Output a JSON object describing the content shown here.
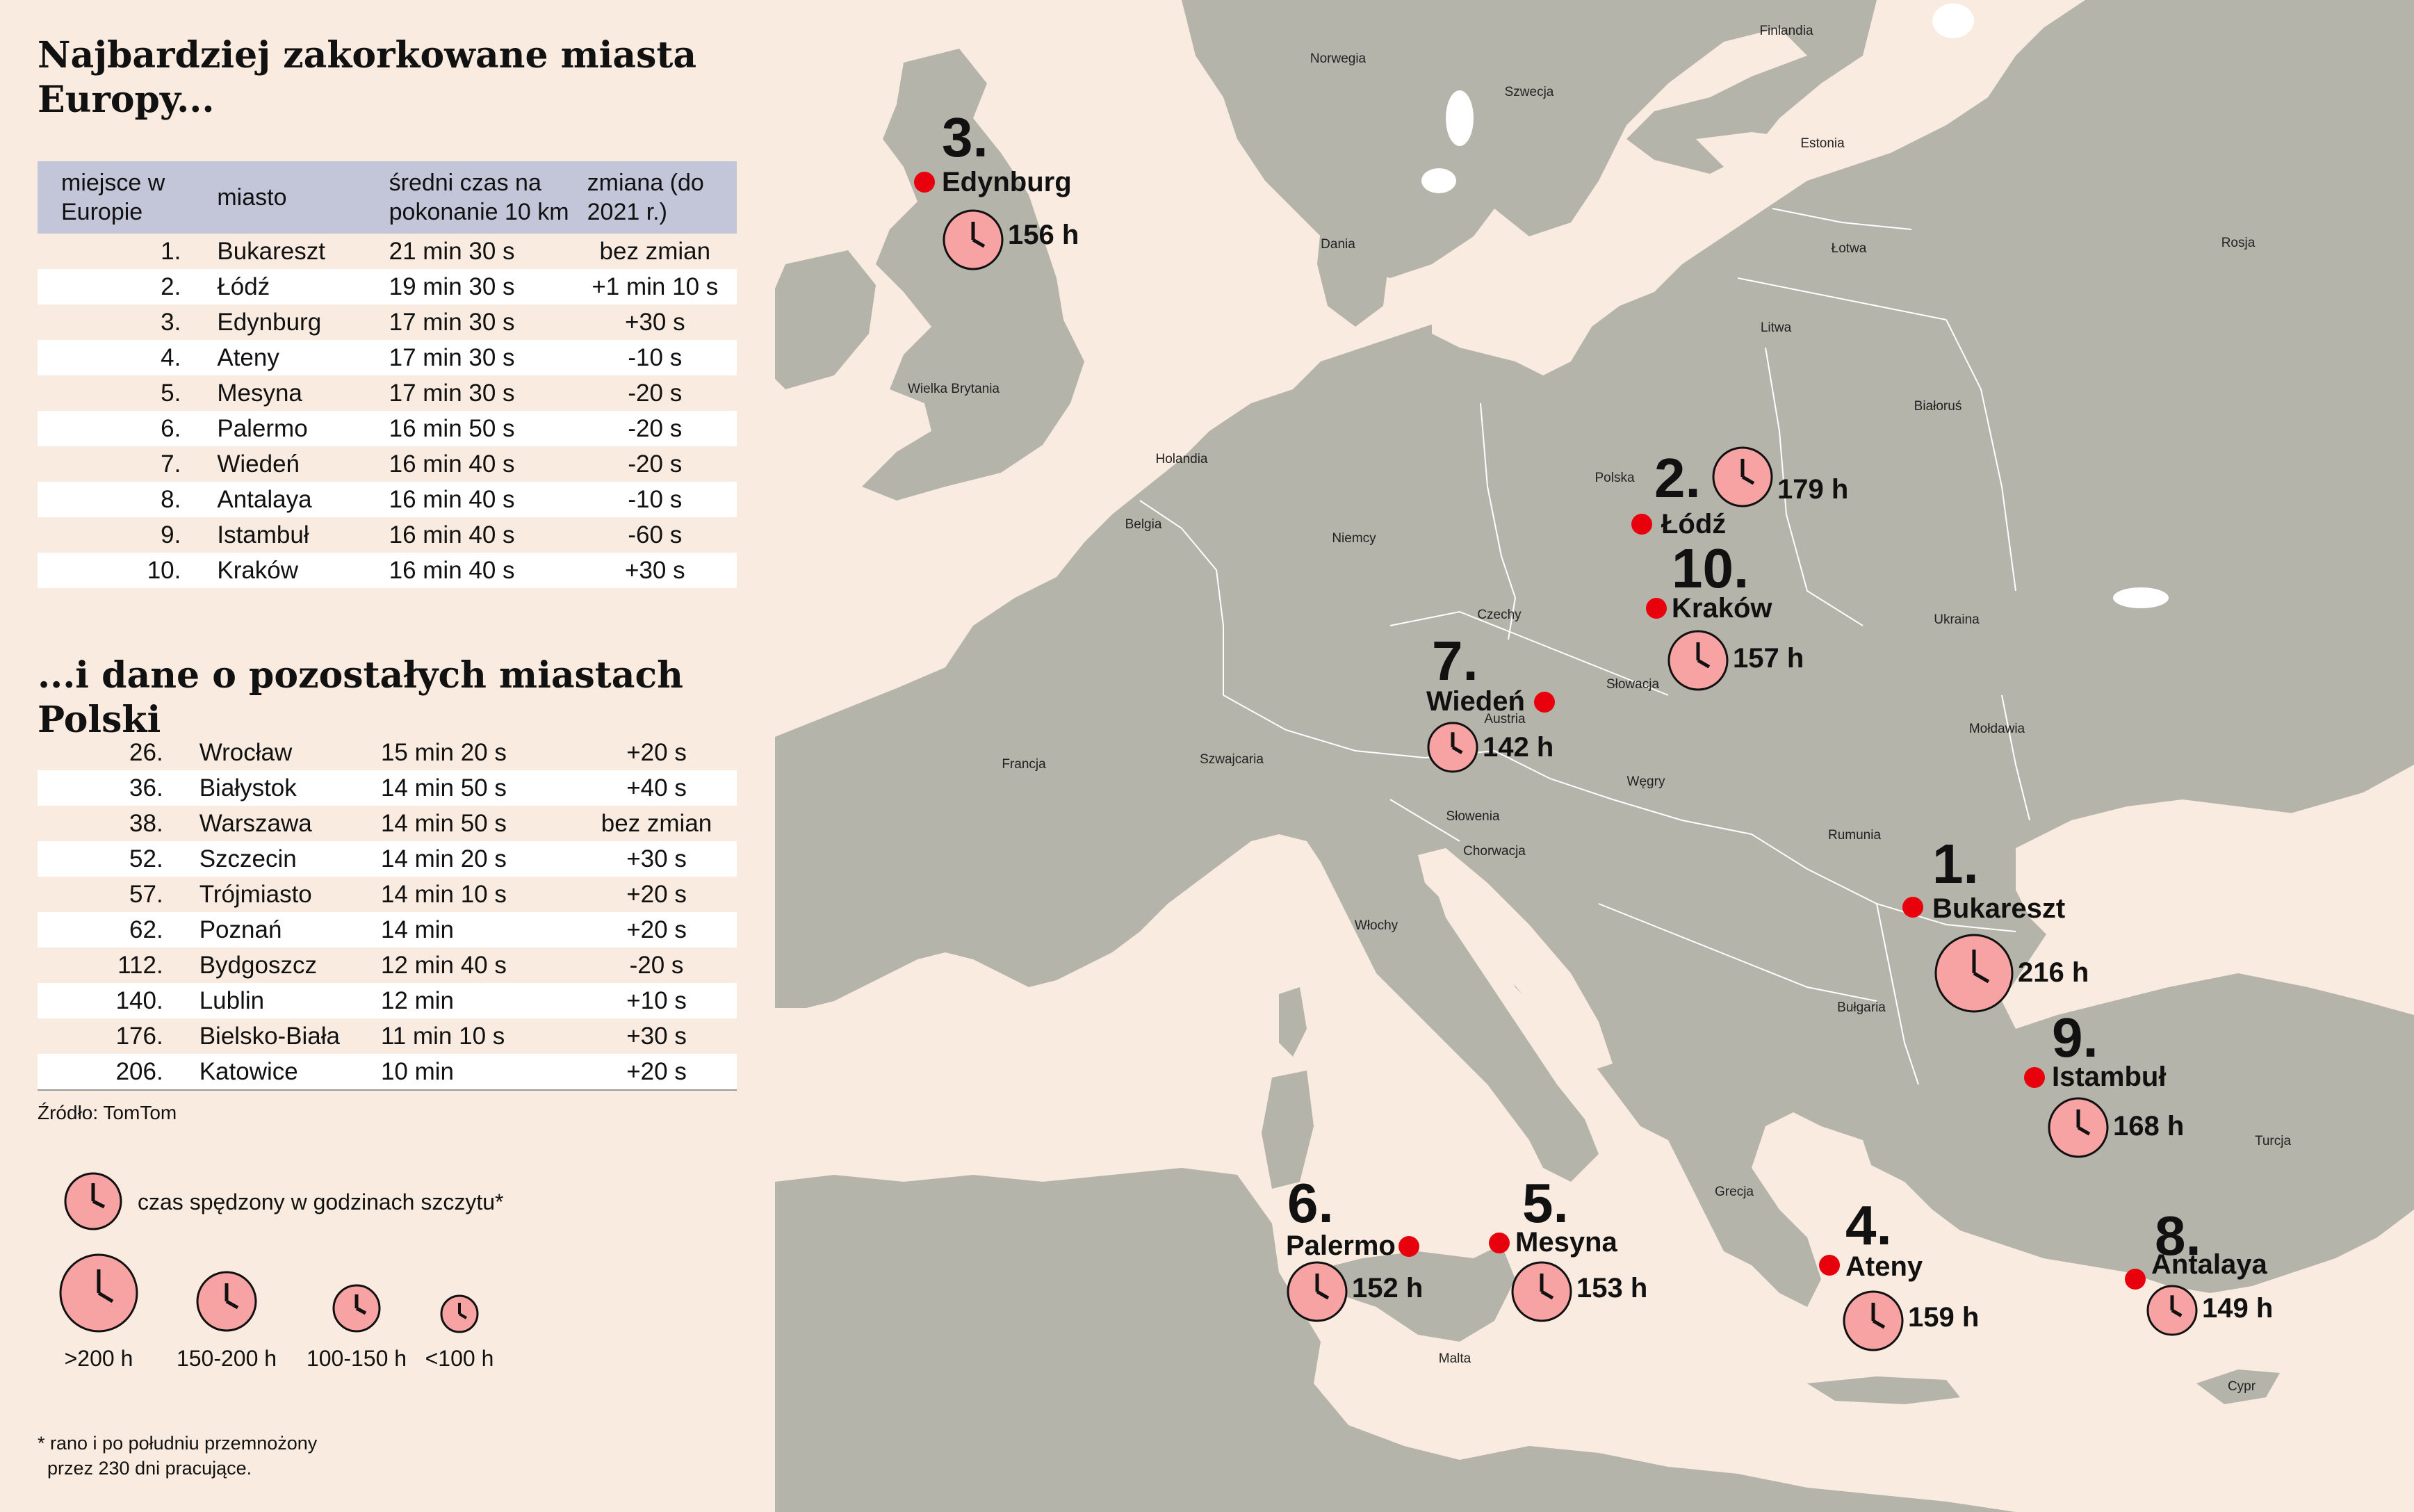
{
  "title_main": "Najbardziej zakorkowane miasta Europy...",
  "title_sub": "...i dane o pozostałych miastach Polski",
  "table_headers": {
    "rank": "miejsce w Europie",
    "city": "miasto",
    "time": "średni czas na pokonanie 10 km",
    "change": "zmiana (do 2021 r.)"
  },
  "europe_rows": [
    {
      "rank": "1.",
      "city": "Bukareszt",
      "time": "21 min 30 s",
      "change": "bez zmian"
    },
    {
      "rank": "2.",
      "city": "Łódź",
      "time": "19 min 30 s",
      "change": "+1 min 10 s"
    },
    {
      "rank": "3.",
      "city": "Edynburg",
      "time": "17 min 30 s",
      "change": "+30 s"
    },
    {
      "rank": "4.",
      "city": "Ateny",
      "time": "17 min 30 s",
      "change": "-10 s"
    },
    {
      "rank": "5.",
      "city": "Mesyna",
      "time": "17 min 30 s",
      "change": "-20 s"
    },
    {
      "rank": "6.",
      "city": "Palermo",
      "time": "16 min 50 s",
      "change": "-20 s"
    },
    {
      "rank": "7.",
      "city": "Wiedeń",
      "time": "16 min 40 s",
      "change": "-20 s"
    },
    {
      "rank": "8.",
      "city": "Antalaya",
      "time": "16 min 40 s",
      "change": "-10 s"
    },
    {
      "rank": "9.",
      "city": "Istambuł",
      "time": "16 min 40 s",
      "change": "-60 s"
    },
    {
      "rank": "10.",
      "city": "Kraków",
      "time": "16 min 40 s",
      "change": "+30 s"
    }
  ],
  "poland_rows": [
    {
      "rank": "26.",
      "city": "Wrocław",
      "time": "15 min 20 s",
      "change": "+20 s"
    },
    {
      "rank": "36.",
      "city": "Białystok",
      "time": "14 min 50 s",
      "change": "+40 s"
    },
    {
      "rank": "38.",
      "city": "Warszawa",
      "time": "14 min 50 s",
      "change": "bez zmian"
    },
    {
      "rank": "52.",
      "city": "Szczecin",
      "time": "14 min 20 s",
      "change": "+30 s"
    },
    {
      "rank": "57.",
      "city": "Trójmiasto",
      "time": "14 min 10 s",
      "change": "+20 s"
    },
    {
      "rank": "62.",
      "city": "Poznań",
      "time": "14 min",
      "change": "+20 s"
    },
    {
      "rank": "112.",
      "city": "Bydgoszcz",
      "time": "12 min 40 s",
      "change": "-20 s"
    },
    {
      "rank": "140.",
      "city": "Lublin",
      "time": "12 min",
      "change": "+10 s"
    },
    {
      "rank": "176.",
      "city": "Bielsko-Biała",
      "time": "11 min 10 s",
      "change": "+30 s"
    },
    {
      "rank": "206.",
      "city": "Katowice",
      "time": "10 min",
      "change": "+20 s"
    }
  ],
  "source": "Źródło: TomTom",
  "legend": {
    "title": "czas spędzony w godzinach szczytu*",
    "sizes": [
      ">200 h",
      "150-200 h",
      "100-150 h",
      "<100 h"
    ]
  },
  "footnote": {
    "line1": "* rano i po południu przemnożony",
    "line2": "przez 230 dni pracujące."
  },
  "map_cities": [
    {
      "rank": "1.",
      "name": "Bukareszt",
      "hours_label": "216 h",
      "hours": 216
    },
    {
      "rank": "2.",
      "name": "Łódź",
      "hours_label": "179 h",
      "hours": 179
    },
    {
      "rank": "3.",
      "name": "Edynburg",
      "hours_label": "156 h",
      "hours": 156
    },
    {
      "rank": "4.",
      "name": "Ateny",
      "hours_label": "159 h",
      "hours": 159
    },
    {
      "rank": "5.",
      "name": "Mesyna",
      "hours_label": "153 h",
      "hours": 153
    },
    {
      "rank": "6.",
      "name": "Palermo",
      "hours_label": "152 h",
      "hours": 152
    },
    {
      "rank": "7.",
      "name": "Wiedeń",
      "hours_label": "142 h",
      "hours": 142
    },
    {
      "rank": "8.",
      "name": "Antalaya",
      "hours_label": "149 h",
      "hours": 149
    },
    {
      "rank": "9.",
      "name": "Istambuł",
      "hours_label": "168 h",
      "hours": 168
    },
    {
      "rank": "10.",
      "name": "Kraków",
      "hours_label": "157 h",
      "hours": 157
    }
  ],
  "countries": [
    "Finlandia",
    "Norwegia",
    "Szwecja",
    "Estonia",
    "Rosja",
    "Dania",
    "Łotwa",
    "Litwa",
    "Wielka Brytania",
    "Białoruś",
    "Holandia",
    "Polska",
    "Belgia",
    "Niemcy",
    "Czechy",
    "Ukraina",
    "Słowacja",
    "Austria",
    "Mołdawia",
    "Francja",
    "Szwajcaria",
    "Węgry",
    "Słowenia",
    "Rumunia",
    "Chorwacja",
    "Włochy",
    "Bułgaria",
    "Turcja",
    "Grecja",
    "Malta",
    "Cypr"
  ],
  "colors": {
    "land": "#b4b4aa",
    "sea": "#f9ebe0",
    "marker": "#e8000c",
    "clock": "#f7a3a3",
    "border": "#ffffff"
  }
}
